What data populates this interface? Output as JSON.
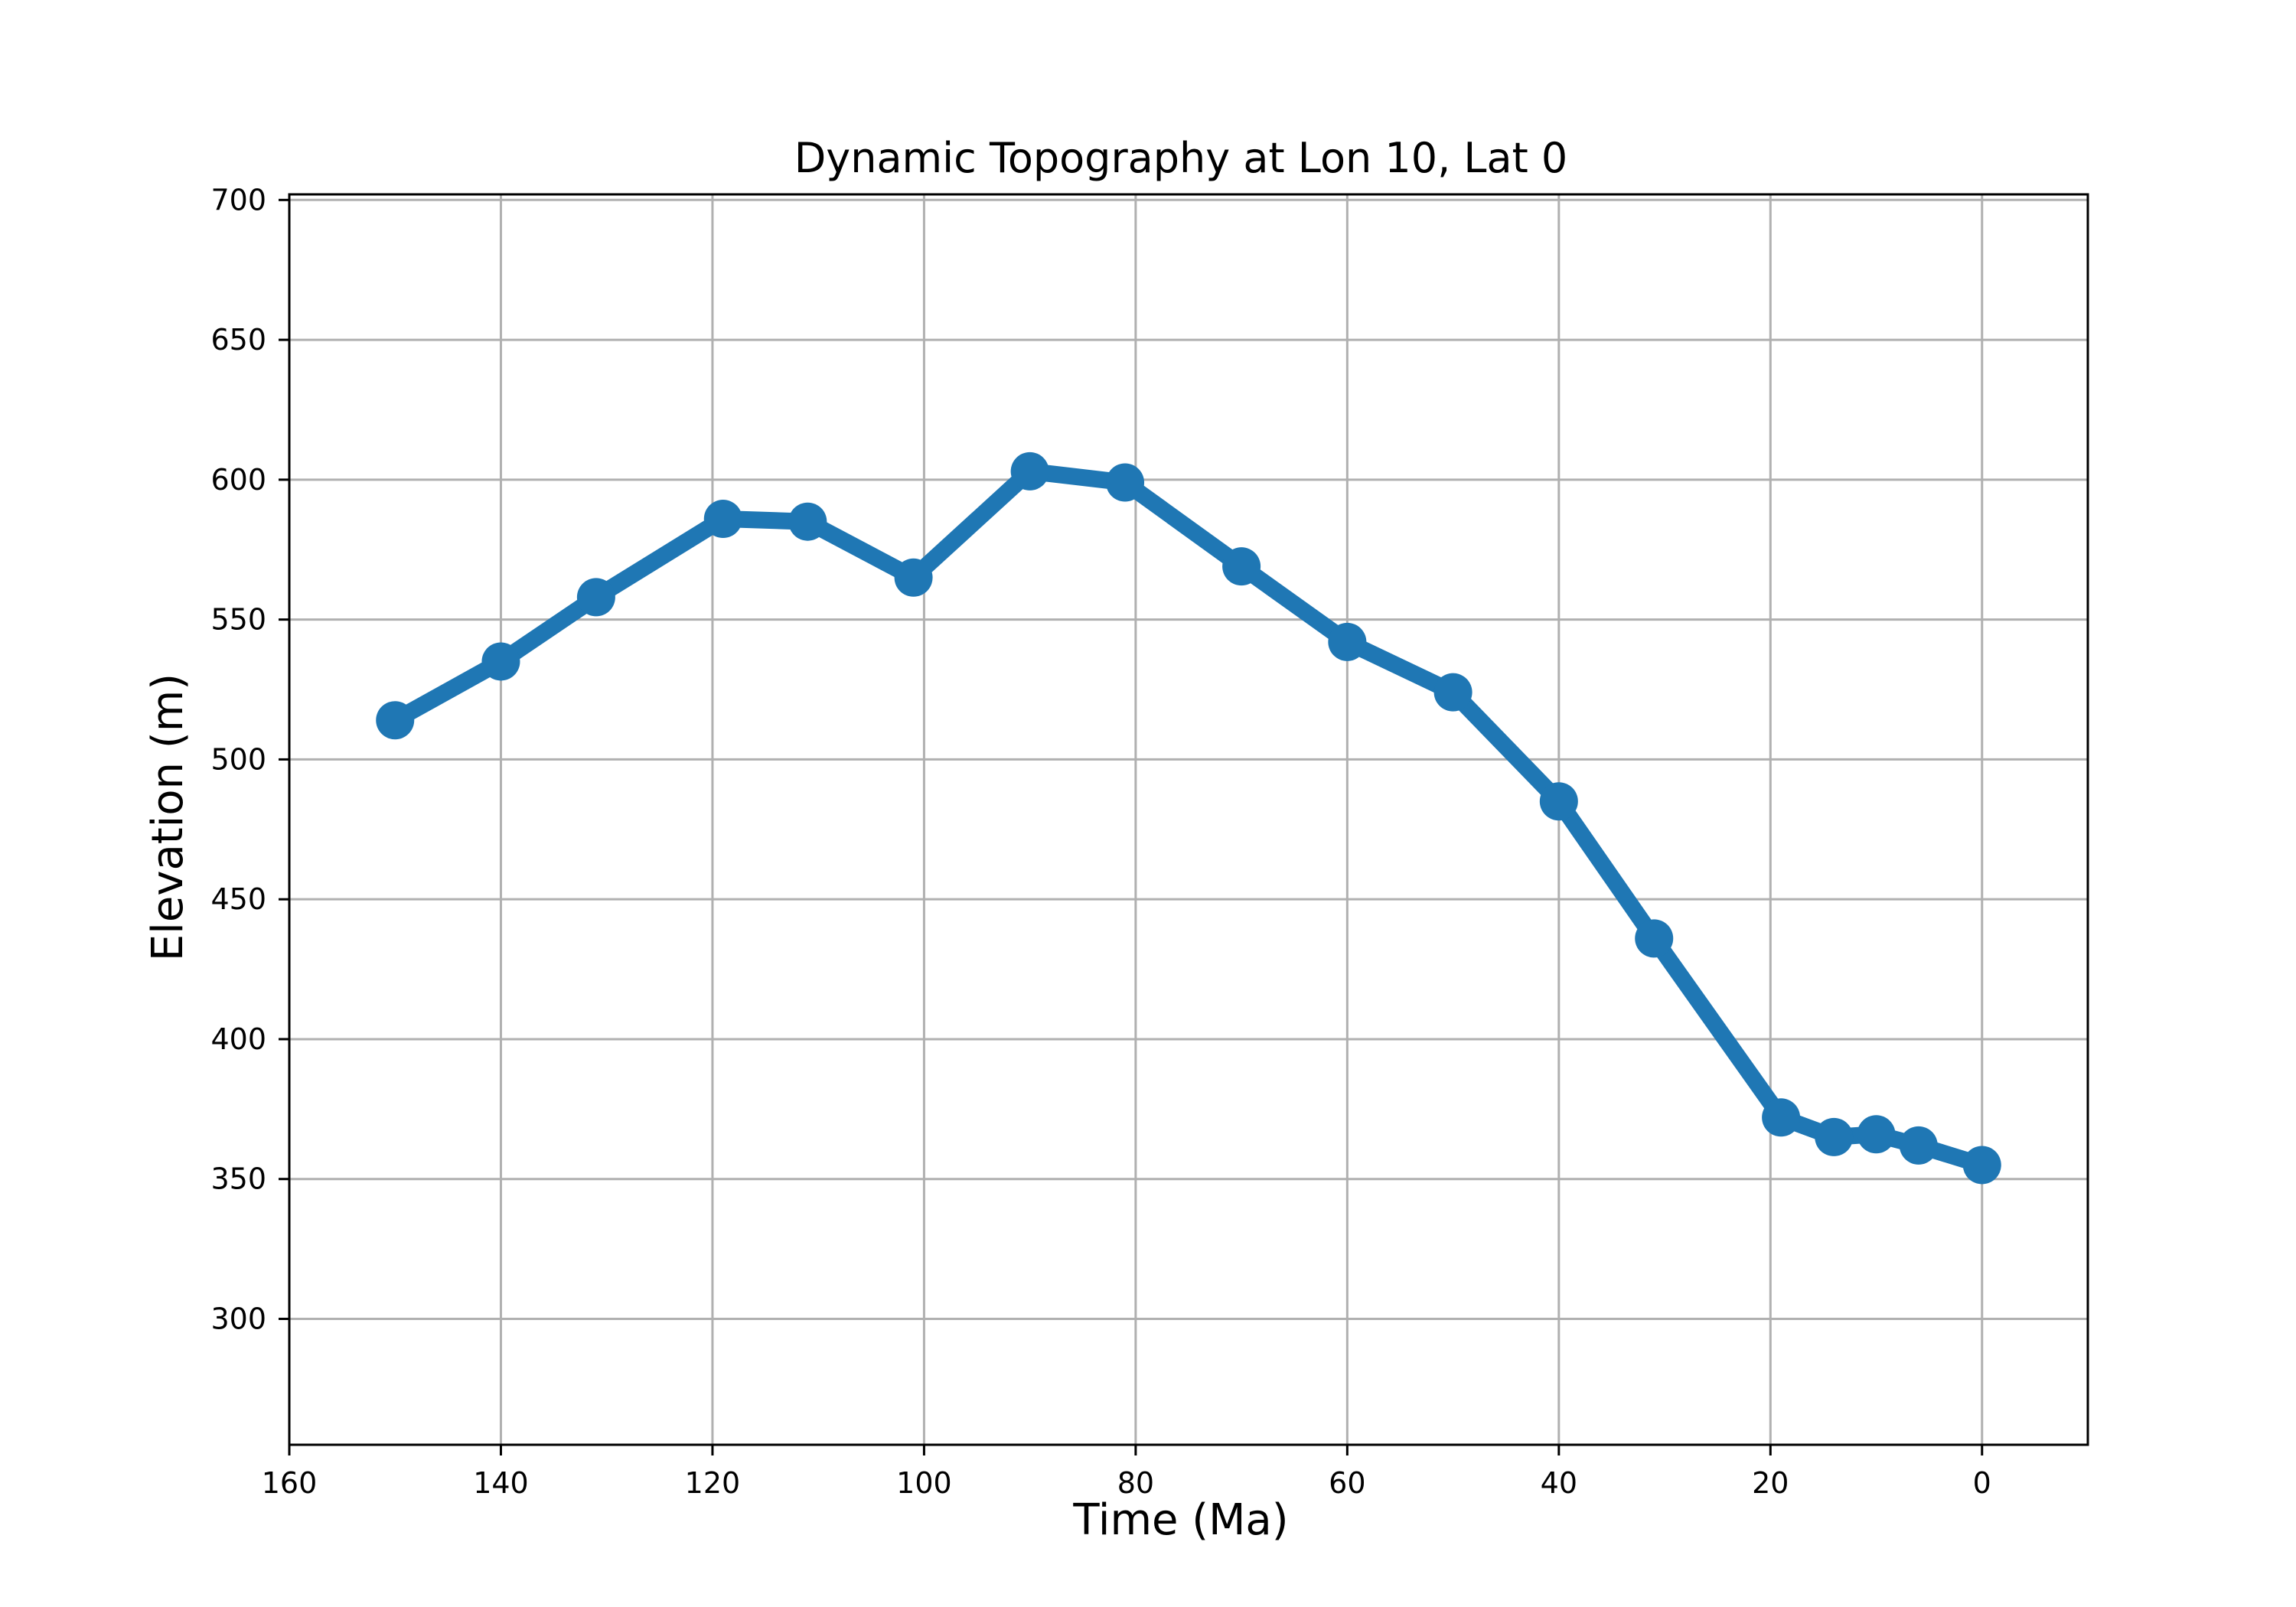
{
  "chart_data": {
    "type": "line",
    "title": "Dynamic Topography at Lon 10, Lat 0",
    "xlabel": "Time (Ma)",
    "ylabel": "Elevation (m)",
    "xlim": [
      160,
      -10
    ],
    "ylim": [
      255,
      702
    ],
    "x_ticks": [
      160,
      140,
      120,
      100,
      80,
      60,
      40,
      20,
      0
    ],
    "y_ticks": [
      300,
      350,
      400,
      450,
      500,
      550,
      600,
      650,
      700
    ],
    "grid": true,
    "x_axis_inverted": true,
    "series": [
      {
        "color": "#1f77b4",
        "marker": "circle",
        "x": [
          150,
          140,
          131,
          119,
          111,
          101,
          90,
          81,
          70,
          60,
          50,
          40,
          31,
          19,
          14,
          10,
          6,
          0
        ],
        "y": [
          514,
          535,
          558,
          586,
          585,
          565,
          603,
          599,
          569,
          542,
          524,
          485,
          436,
          372,
          365,
          366,
          362,
          355
        ]
      }
    ]
  }
}
